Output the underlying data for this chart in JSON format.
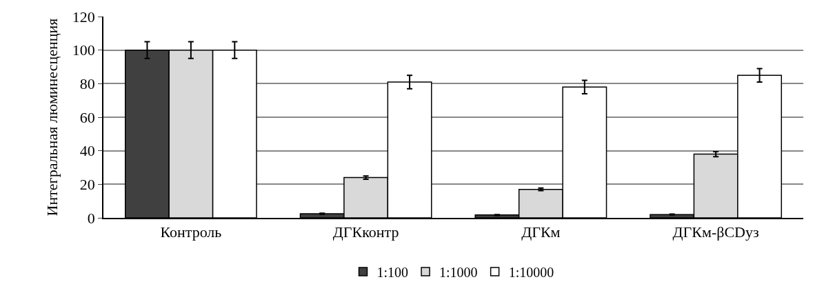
{
  "chart_data": {
    "type": "bar",
    "ylabel": "Интегральная люминесценция",
    "categories": [
      "Контроль",
      "ДГКконтр",
      "ДГКм",
      "ДГКм-βCDуз"
    ],
    "series": [
      {
        "name": "1:100",
        "color": "#404040",
        "values": [
          100,
          2.5,
          1.7,
          2
        ],
        "errors": [
          5,
          0.3,
          0.3,
          0.3
        ]
      },
      {
        "name": "1:1000",
        "color": "#d9d9d9",
        "values": [
          100,
          24,
          17,
          38
        ],
        "errors": [
          5,
          1,
          0.8,
          1.5
        ]
      },
      {
        "name": "1:10000",
        "color": "#ffffff",
        "values": [
          100,
          81,
          78,
          85
        ],
        "errors": [
          5,
          4,
          4,
          4
        ]
      }
    ],
    "ylim": [
      0,
      120
    ],
    "yticks": [
      0,
      20,
      40,
      60,
      80,
      100,
      120
    ],
    "grid": "y",
    "legend": "bottom"
  }
}
